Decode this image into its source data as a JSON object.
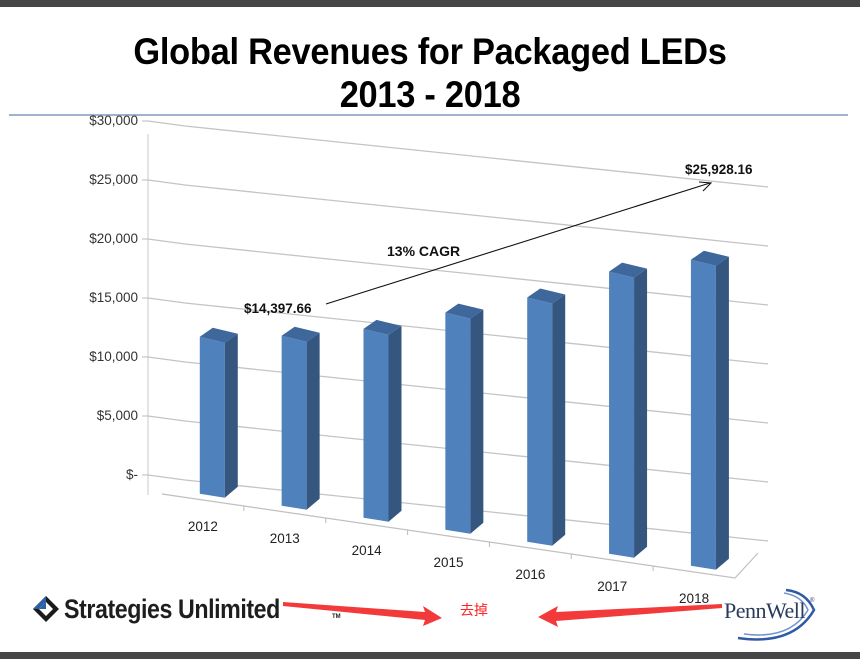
{
  "title_line1": "Global Revenues for Packaged LEDs",
  "title_line2": "2013 - 2018",
  "chart_data": {
    "type": "bar",
    "style": "3d-column",
    "title": "Global Revenues for Packaged LEDs 2013 - 2018",
    "xlabel": "",
    "ylabel": "",
    "categories": [
      "2012",
      "2013",
      "2014",
      "2015",
      "2016",
      "2017",
      "2018"
    ],
    "values": [
      13300,
      14397.66,
      16000,
      18400,
      20700,
      23900,
      25928.16
    ],
    "ylim": [
      0,
      30000
    ],
    "yticks": [
      0,
      5000,
      10000,
      15000,
      20000,
      25000,
      30000
    ],
    "ytick_labels": [
      "$-",
      "$5,000",
      "$10,000",
      "$15,000",
      "$20,000",
      "$25,000",
      "$30,000"
    ],
    "grid": true,
    "legend": "none",
    "bar_color": "#4f81bd",
    "annotations": [
      {
        "text": "$14,397.66",
        "category": "2013",
        "role": "start-value"
      },
      {
        "text": "$25,928.16",
        "category": "2018",
        "role": "end-value"
      },
      {
        "text": "13% CAGR",
        "role": "growth-label"
      }
    ]
  },
  "footer": {
    "left_logo": "Strategies Unlimited",
    "left_logo_tm": "TM",
    "right_logo": "PennWell",
    "right_logo_reg": "®",
    "note_text": "去掉",
    "note_color": "#ff2222"
  }
}
